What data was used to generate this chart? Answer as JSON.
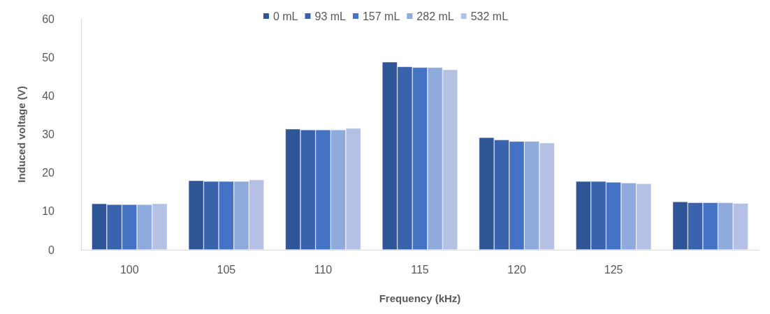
{
  "chart_data": {
    "type": "bar",
    "xlabel": "Frequency (kHz)",
    "ylabel": "Induced voltage (V)",
    "categories": [
      "100",
      "105",
      "110",
      "115",
      "120",
      "125",
      null
    ],
    "series": [
      {
        "name": "0 mL",
        "color": "#2f5597",
        "values": [
          12,
          18,
          31.4,
          48.8,
          29.2,
          17.8,
          12.5
        ]
      },
      {
        "name": "93 mL",
        "color": "#3a63ad",
        "values": [
          11.8,
          17.8,
          31.2,
          47.6,
          28.6,
          17.8,
          12.3
        ]
      },
      {
        "name": "157 mL",
        "color": "#4472c4",
        "values": [
          11.8,
          17.8,
          31.2,
          47.4,
          28.2,
          17.6,
          12.3
        ]
      },
      {
        "name": "282 mL",
        "color": "#8faadc",
        "values": [
          11.8,
          17.8,
          31.2,
          47.4,
          28.2,
          17.4,
          12.3
        ]
      },
      {
        "name": "532 mL",
        "color": "#b4c1e4",
        "values": [
          12,
          18.2,
          31.6,
          46.8,
          27.8,
          17.2,
          12.1
        ]
      }
    ],
    "ylim": [
      0,
      60
    ],
    "yticks": [
      0,
      10,
      20,
      30,
      40,
      50,
      60
    ],
    "grid": false,
    "legend": "top"
  }
}
